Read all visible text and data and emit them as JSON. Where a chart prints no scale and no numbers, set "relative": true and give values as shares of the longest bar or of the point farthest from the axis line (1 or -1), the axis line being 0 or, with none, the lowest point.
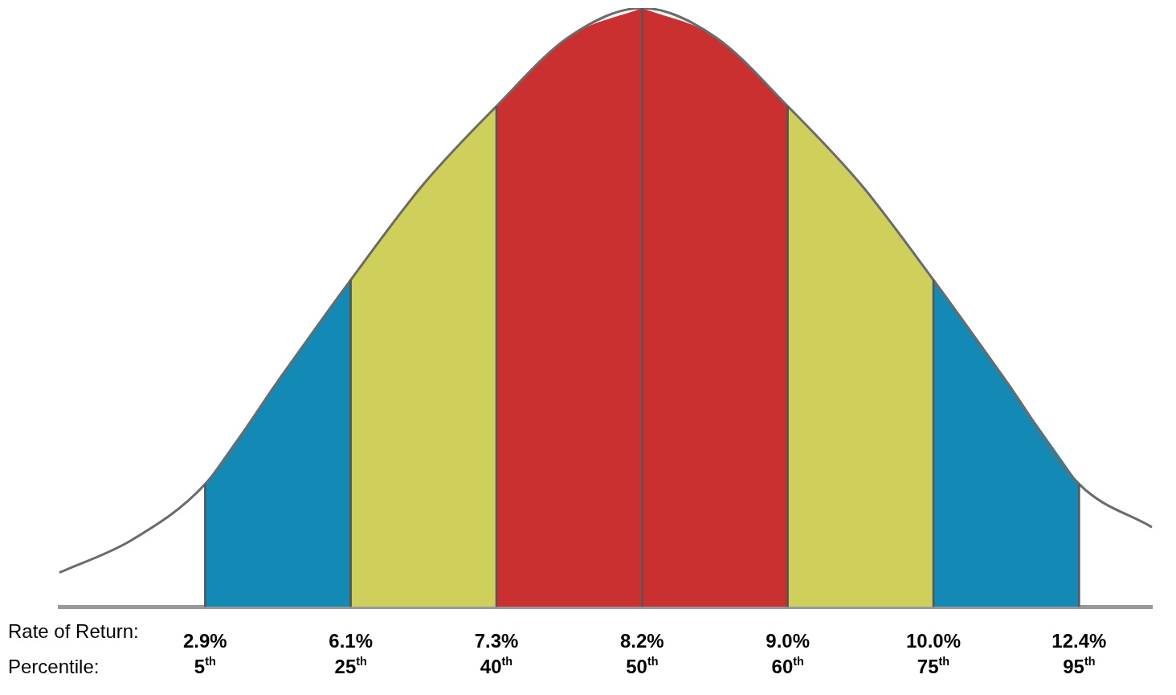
{
  "chart_data": {
    "type": "area",
    "relative": true,
    "categories": [
      null,
      null,
      "2.9%",
      null,
      "6.1%",
      null,
      "7.3%",
      null,
      "8.2%",
      null,
      "9.0%",
      null,
      "10.0%",
      null,
      "12.4%",
      null
    ],
    "series": [
      {
        "type": "line",
        "color": "#6b6b6b",
        "values": [
          0.057,
          0.112,
          0.205,
          0.377,
          0.546,
          0.706,
          0.836,
          0.952,
          1,
          0.952,
          0.836,
          0.706,
          0.546,
          0.377,
          0.205,
          0.133
        ]
      },
      {
        "color": "#1389b5",
        "values": [
          null,
          null,
          0.205,
          0.377,
          0.546,
          null,
          null,
          null,
          null,
          null,
          null,
          null,
          null,
          null,
          null,
          null
        ]
      },
      {
        "color": "#cfcf5c",
        "values": [
          null,
          null,
          null,
          null,
          0.546,
          0.706,
          0.836,
          null,
          null,
          null,
          null,
          null,
          null,
          null,
          null,
          null
        ]
      },
      {
        "color": "#c9302f",
        "values": [
          null,
          null,
          null,
          null,
          null,
          null,
          0.836,
          0.952,
          1,
          null,
          null,
          null,
          null,
          null,
          null,
          null
        ]
      },
      {
        "color": "#c9302f",
        "values": [
          null,
          null,
          null,
          null,
          null,
          null,
          null,
          null,
          1,
          0.952,
          0.836,
          null,
          null,
          null,
          null,
          null
        ]
      },
      {
        "color": "#cfcf5c",
        "values": [
          null,
          null,
          null,
          null,
          null,
          null,
          null,
          null,
          null,
          null,
          0.836,
          0.706,
          0.546,
          null,
          null,
          null
        ]
      },
      {
        "color": "#1389b5",
        "values": [
          null,
          null,
          null,
          null,
          null,
          null,
          null,
          null,
          null,
          null,
          null,
          null,
          0.546,
          0.377,
          0.205,
          null
        ]
      }
    ],
    "ref_lines": [
      {
        "axis": "x",
        "value": "2.9%",
        "color": "#555555"
      },
      {
        "axis": "x",
        "value": "6.1%",
        "color": "#555555"
      },
      {
        "axis": "x",
        "value": "7.3%",
        "color": "#555555"
      },
      {
        "axis": "x",
        "value": "8.2%",
        "color": "#555555"
      },
      {
        "axis": "x",
        "value": "9.0%",
        "color": "#555555"
      },
      {
        "axis": "x",
        "value": "10.0%",
        "color": "#555555"
      },
      {
        "axis": "x",
        "value": "12.4%",
        "color": "#555555"
      }
    ],
    "annotations": [
      "Rate of Return:",
      "Percentile:",
      "5$^{th}$",
      "25$^{th}$",
      "40$^{th}$",
      "50$^{th}$",
      "60$^{th}$",
      "75$^{th}$",
      "95$^{th}$"
    ]
  }
}
